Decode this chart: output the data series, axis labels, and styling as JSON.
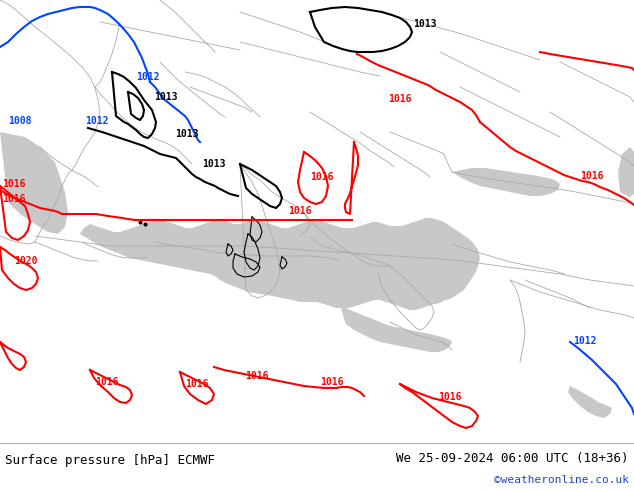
{
  "bottom_left_text": "Surface pressure [hPa] ECMWF",
  "bottom_right_text": "We 25-09-2024 06:00 UTC (18+36)",
  "bottom_credit": "©weatheronline.co.uk",
  "land_color": "#b2e8a0",
  "sea_color": "#c8c8c8",
  "border_color": "#aaaaaa",
  "bottom_bar_color": "#d0ecc8",
  "fig_bg_color": "#ffffff",
  "text_color": "#000000",
  "credit_color": "#2244cc",
  "black_contour_color": "#000000",
  "blue_contour_color": "#0044ff",
  "red_contour_color": "#ff0000",
  "figsize": [
    6.34,
    4.9
  ],
  "dpi": 100
}
